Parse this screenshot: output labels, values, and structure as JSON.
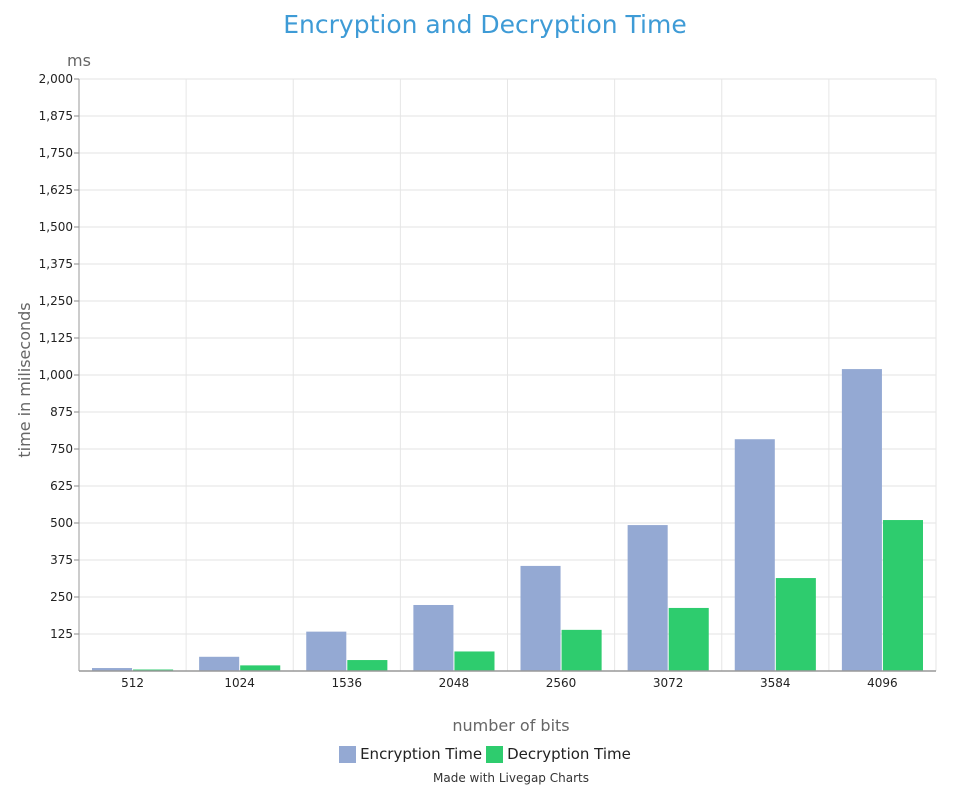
{
  "chart_data": {
    "type": "bar",
    "title": "Encryption and Decryption Time",
    "unit_label": "ms",
    "xlabel": "number of bits",
    "ylabel": "time in  miliseconds",
    "categories": [
      "512",
      "1024",
      "1536",
      "2048",
      "2560",
      "3072",
      "3584",
      "4096"
    ],
    "series": [
      {
        "name": "Encryption Time",
        "color": "#94a9d3",
        "values": [
          10,
          48,
          133,
          223,
          355,
          493,
          783,
          1020
        ]
      },
      {
        "name": "Decryption Time",
        "color": "#2ecc6e",
        "values": [
          5,
          19,
          37,
          66,
          139,
          213,
          314,
          510
        ]
      }
    ],
    "ylim": [
      0,
      2000
    ],
    "yticks": [
      125,
      250,
      375,
      500,
      625,
      750,
      875,
      1000,
      1125,
      1250,
      1375,
      1500,
      1625,
      1750,
      1875,
      2000
    ],
    "ytick_labels": [
      "125",
      "250",
      "375",
      "500",
      "625",
      "750",
      "875",
      "1,000",
      "1,125",
      "1,250",
      "1,375",
      "1,500",
      "1,625",
      "1,750",
      "1,875",
      "2,000"
    ],
    "grid": true,
    "legend_position": "bottom-center"
  },
  "footer": {
    "credit": "Made with Livegap Charts"
  }
}
